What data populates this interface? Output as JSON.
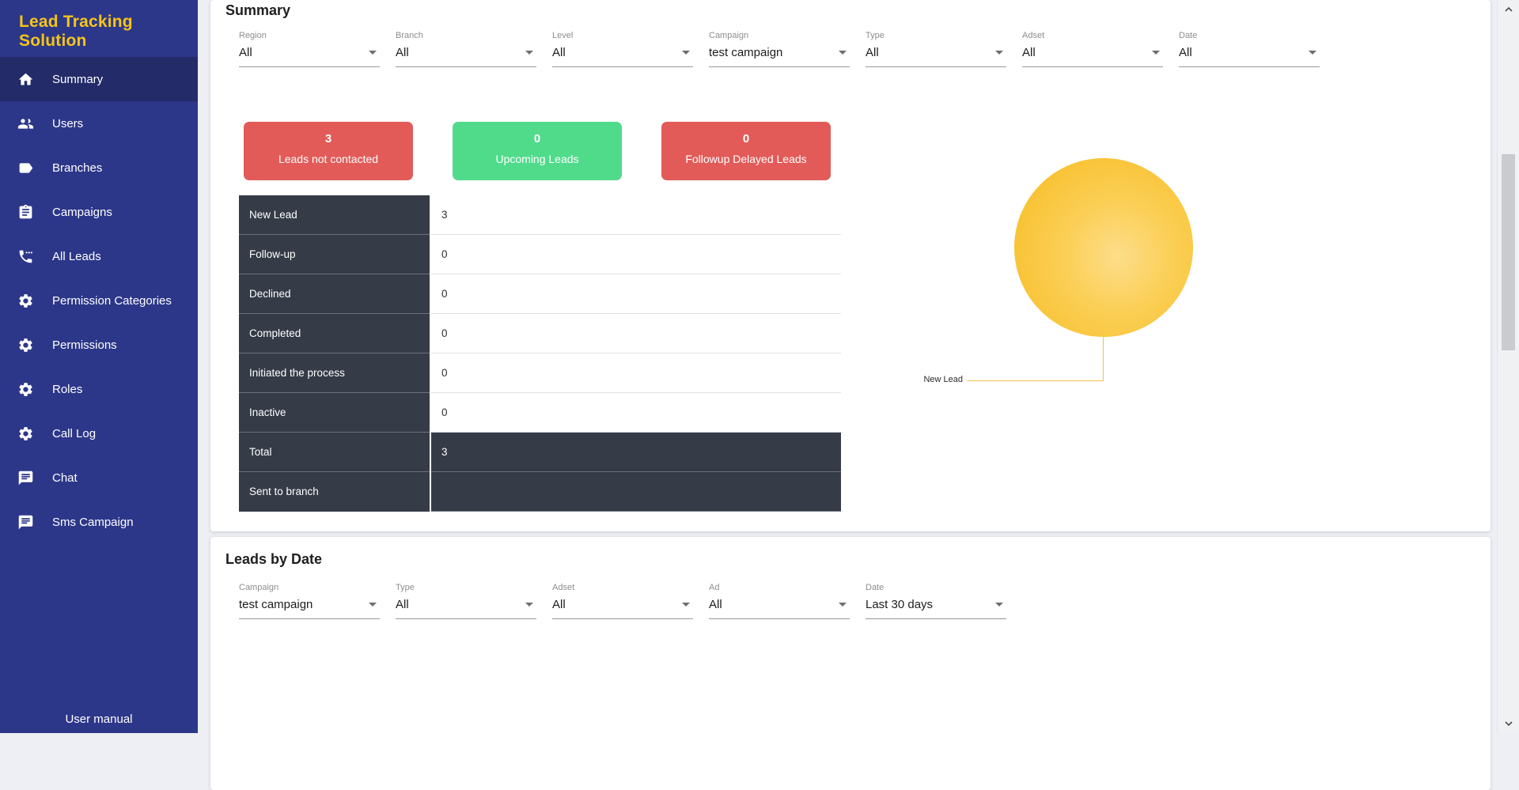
{
  "sidebar": {
    "title": "Lead Tracking Solution",
    "items": [
      {
        "label": "Summary",
        "icon": "home-icon",
        "active": true
      },
      {
        "label": "Users",
        "icon": "people-icon",
        "active": false
      },
      {
        "label": "Branches",
        "icon": "tag-icon",
        "active": false
      },
      {
        "label": "Campaigns",
        "icon": "clipboard-icon",
        "active": false
      },
      {
        "label": "All Leads",
        "icon": "phone-icon",
        "active": false
      },
      {
        "label": "Permission Categories",
        "icon": "gear-icon",
        "active": false
      },
      {
        "label": "Permissions",
        "icon": "gear-icon",
        "active": false
      },
      {
        "label": "Roles",
        "icon": "gear-icon",
        "active": false
      },
      {
        "label": "Call Log",
        "icon": "gear-icon",
        "active": false
      },
      {
        "label": "Chat",
        "icon": "chat-icon",
        "active": false
      },
      {
        "label": "Sms Campaign",
        "icon": "chat-icon",
        "active": false
      }
    ],
    "footer_link": "User manual"
  },
  "summary": {
    "heading": "Summary",
    "filters": [
      {
        "label": "Region",
        "value": "All"
      },
      {
        "label": "Branch",
        "value": "All"
      },
      {
        "label": "Level",
        "value": "All"
      },
      {
        "label": "Campaign",
        "value": "test campaign"
      },
      {
        "label": "Type",
        "value": "All"
      },
      {
        "label": "Adset",
        "value": "All"
      },
      {
        "label": "Date",
        "value": "All"
      }
    ],
    "stat_cards": [
      {
        "value": "3",
        "label": "Leads not contacted",
        "color": "#e25b58"
      },
      {
        "value": "0",
        "label": "Upcoming Leads",
        "color": "#50db8b"
      },
      {
        "value": "0",
        "label": "Followup Delayed Leads",
        "color": "#e25b58"
      }
    ],
    "status_table": {
      "rows": [
        {
          "label": "New Lead",
          "value": "3",
          "dark": false
        },
        {
          "label": "Follow-up",
          "value": "0",
          "dark": false
        },
        {
          "label": "Declined",
          "value": "0",
          "dark": false
        },
        {
          "label": "Completed",
          "value": "0",
          "dark": false
        },
        {
          "label": "Initiated the process",
          "value": "0",
          "dark": false
        },
        {
          "label": "Inactive",
          "value": "0",
          "dark": false
        },
        {
          "label": "Total",
          "value": "3",
          "dark": true
        },
        {
          "label": "Sent to branch",
          "value": "",
          "dark": true
        }
      ]
    },
    "pie": {
      "label": "New Lead",
      "value": 3,
      "color": "#f7bb1d"
    }
  },
  "leads_by_date": {
    "heading": "Leads by Date",
    "filters": [
      {
        "label": "Campaign",
        "value": "test campaign"
      },
      {
        "label": "Type",
        "value": "All"
      },
      {
        "label": "Adset",
        "value": "All"
      },
      {
        "label": "Ad",
        "value": "All"
      },
      {
        "label": "Date",
        "value": "Last 30 days"
      }
    ]
  },
  "chart_data": {
    "type": "pie",
    "labels": [
      "New Lead"
    ],
    "values": [
      3
    ],
    "colors": [
      "#f7bb1d"
    ],
    "title": "",
    "legend_position": "callout-label"
  },
  "colors": {
    "sidebar_bg": "#2d3789",
    "sidebar_active_bg": "#232b68",
    "brand_yellow": "#f5c518",
    "card_red": "#e25b58",
    "card_green": "#50db8b",
    "table_dark": "#353b47",
    "pie_yellow": "#f7bb1d",
    "page_bg": "#edeff4"
  }
}
